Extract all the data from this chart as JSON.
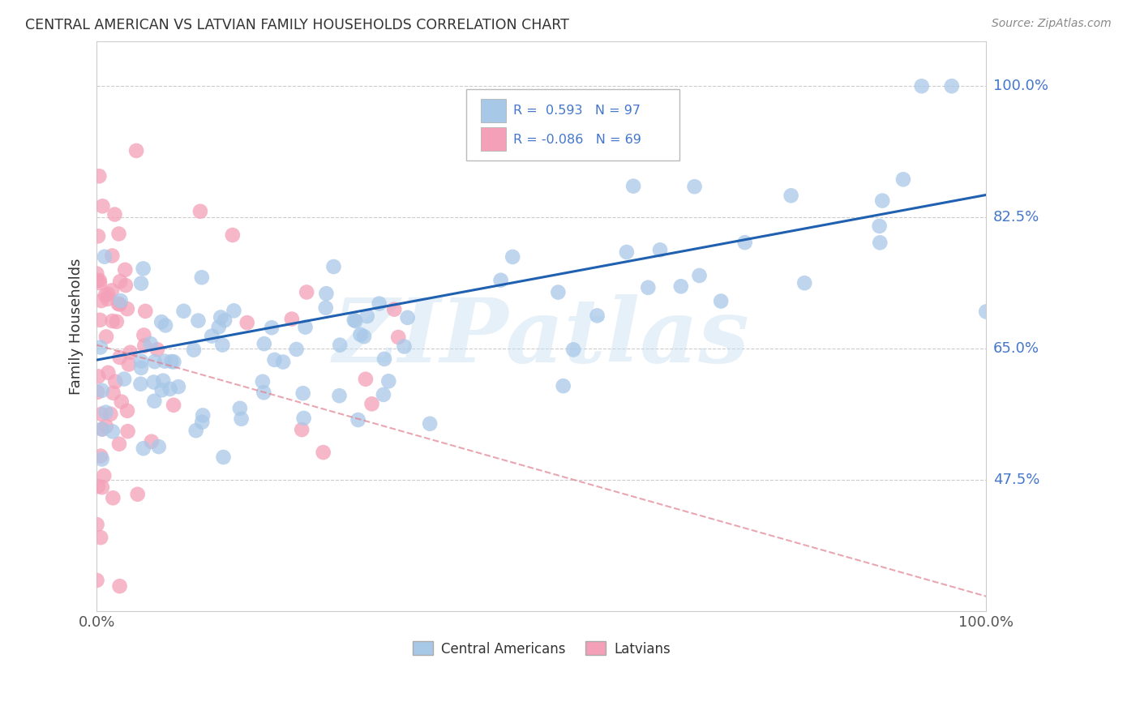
{
  "title": "CENTRAL AMERICAN VS LATVIAN FAMILY HOUSEHOLDS CORRELATION CHART",
  "source": "Source: ZipAtlas.com",
  "ylabel": "Family Households",
  "x_tick_labels": [
    "0.0%",
    "100.0%"
  ],
  "y_tick_labels": [
    "47.5%",
    "65.0%",
    "82.5%",
    "100.0%"
  ],
  "y_tick_positions": [
    0.475,
    0.65,
    0.825,
    1.0
  ],
  "watermark": "ZIPatlas",
  "blue_color": "#a8c8e8",
  "pink_color": "#f4a0b8",
  "line_blue_color": "#2060b0",
  "line_pink_color": "#e08090",
  "background_color": "#ffffff",
  "grid_color": "#cccccc",
  "blue_r": 0.593,
  "blue_n": 97,
  "pink_r": -0.086,
  "pink_n": 69,
  "blue_line_x": [
    0.0,
    1.0
  ],
  "blue_line_y": [
    0.635,
    0.855
  ],
  "pink_line_x": [
    0.0,
    1.0
  ],
  "pink_line_y": [
    0.655,
    0.32
  ],
  "xlim": [
    0.0,
    1.0
  ],
  "ylim": [
    0.3,
    1.06
  ],
  "yaxis_label_color": "#4477cc",
  "title_color": "#333333",
  "source_color": "#888888"
}
